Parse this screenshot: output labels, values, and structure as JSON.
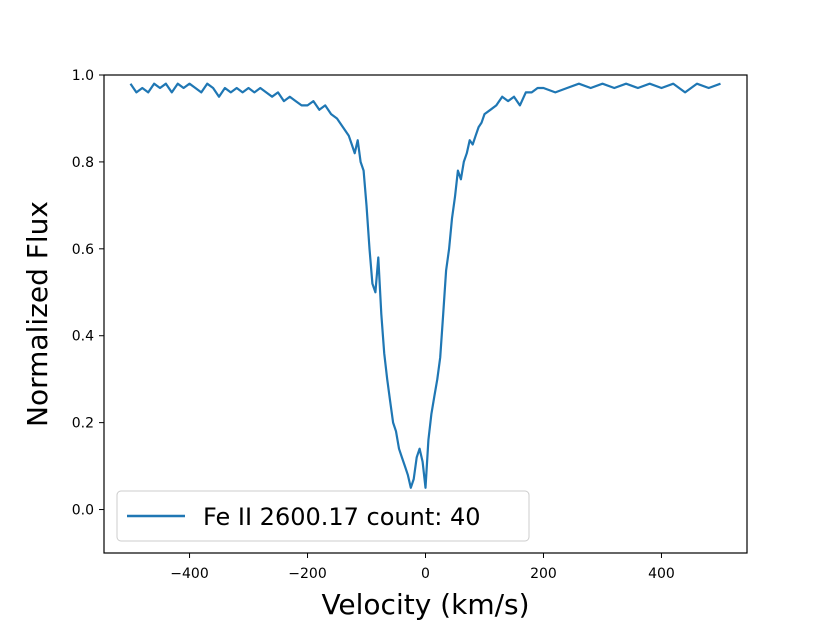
{
  "chart_data": {
    "type": "line",
    "title": "",
    "xlabel": "Velocity (km/s)",
    "ylabel": "Normalized Flux",
    "xlim": [
      -545,
      545
    ],
    "ylim": [
      -0.1,
      1.0
    ],
    "grid": false,
    "legend_position": "lower-left",
    "x_ticks": [
      -400,
      -200,
      0,
      200,
      400
    ],
    "x_tick_labels": [
      "−400",
      "−200",
      "0",
      "200",
      "400"
    ],
    "y_ticks": [
      0.0,
      0.2,
      0.4,
      0.6,
      0.8,
      1.0
    ],
    "y_tick_labels": [
      "0.0",
      "0.2",
      "0.4",
      "0.6",
      "0.8",
      "1.0"
    ],
    "series": [
      {
        "name": "Fe II 2600.17 count: 40",
        "color": "#1f77b4",
        "x": [
          -500,
          -490,
          -480,
          -470,
          -460,
          -450,
          -440,
          -430,
          -420,
          -410,
          -400,
          -390,
          -380,
          -370,
          -360,
          -350,
          -340,
          -330,
          -320,
          -310,
          -300,
          -290,
          -280,
          -270,
          -260,
          -250,
          -240,
          -230,
          -220,
          -210,
          -200,
          -190,
          -180,
          -170,
          -160,
          -150,
          -140,
          -130,
          -125,
          -120,
          -115,
          -110,
          -105,
          -100,
          -95,
          -90,
          -85,
          -80,
          -75,
          -70,
          -65,
          -60,
          -55,
          -50,
          -45,
          -40,
          -35,
          -30,
          -25,
          -20,
          -15,
          -10,
          -5,
          0,
          5,
          10,
          15,
          20,
          25,
          30,
          35,
          40,
          45,
          50,
          55,
          60,
          65,
          70,
          75,
          80,
          85,
          90,
          95,
          100,
          110,
          120,
          130,
          140,
          150,
          160,
          170,
          180,
          190,
          200,
          220,
          240,
          260,
          280,
          300,
          320,
          340,
          360,
          380,
          400,
          420,
          440,
          460,
          480,
          500
        ],
        "y": [
          0.98,
          0.96,
          0.97,
          0.96,
          0.98,
          0.97,
          0.98,
          0.96,
          0.98,
          0.97,
          0.98,
          0.97,
          0.96,
          0.98,
          0.97,
          0.95,
          0.97,
          0.96,
          0.97,
          0.96,
          0.97,
          0.96,
          0.97,
          0.96,
          0.95,
          0.96,
          0.94,
          0.95,
          0.94,
          0.93,
          0.93,
          0.94,
          0.92,
          0.93,
          0.91,
          0.9,
          0.88,
          0.86,
          0.84,
          0.82,
          0.85,
          0.8,
          0.78,
          0.7,
          0.6,
          0.52,
          0.5,
          0.58,
          0.45,
          0.36,
          0.3,
          0.25,
          0.2,
          0.18,
          0.14,
          0.12,
          0.1,
          0.08,
          0.05,
          0.07,
          0.12,
          0.14,
          0.11,
          0.05,
          0.16,
          0.22,
          0.26,
          0.3,
          0.35,
          0.45,
          0.55,
          0.6,
          0.67,
          0.72,
          0.78,
          0.76,
          0.8,
          0.82,
          0.85,
          0.84,
          0.86,
          0.88,
          0.89,
          0.91,
          0.92,
          0.93,
          0.95,
          0.94,
          0.95,
          0.93,
          0.96,
          0.96,
          0.97,
          0.97,
          0.96,
          0.97,
          0.98,
          0.97,
          0.98,
          0.97,
          0.98,
          0.97,
          0.98,
          0.97,
          0.98,
          0.96,
          0.98,
          0.97,
          0.98
        ]
      }
    ]
  }
}
